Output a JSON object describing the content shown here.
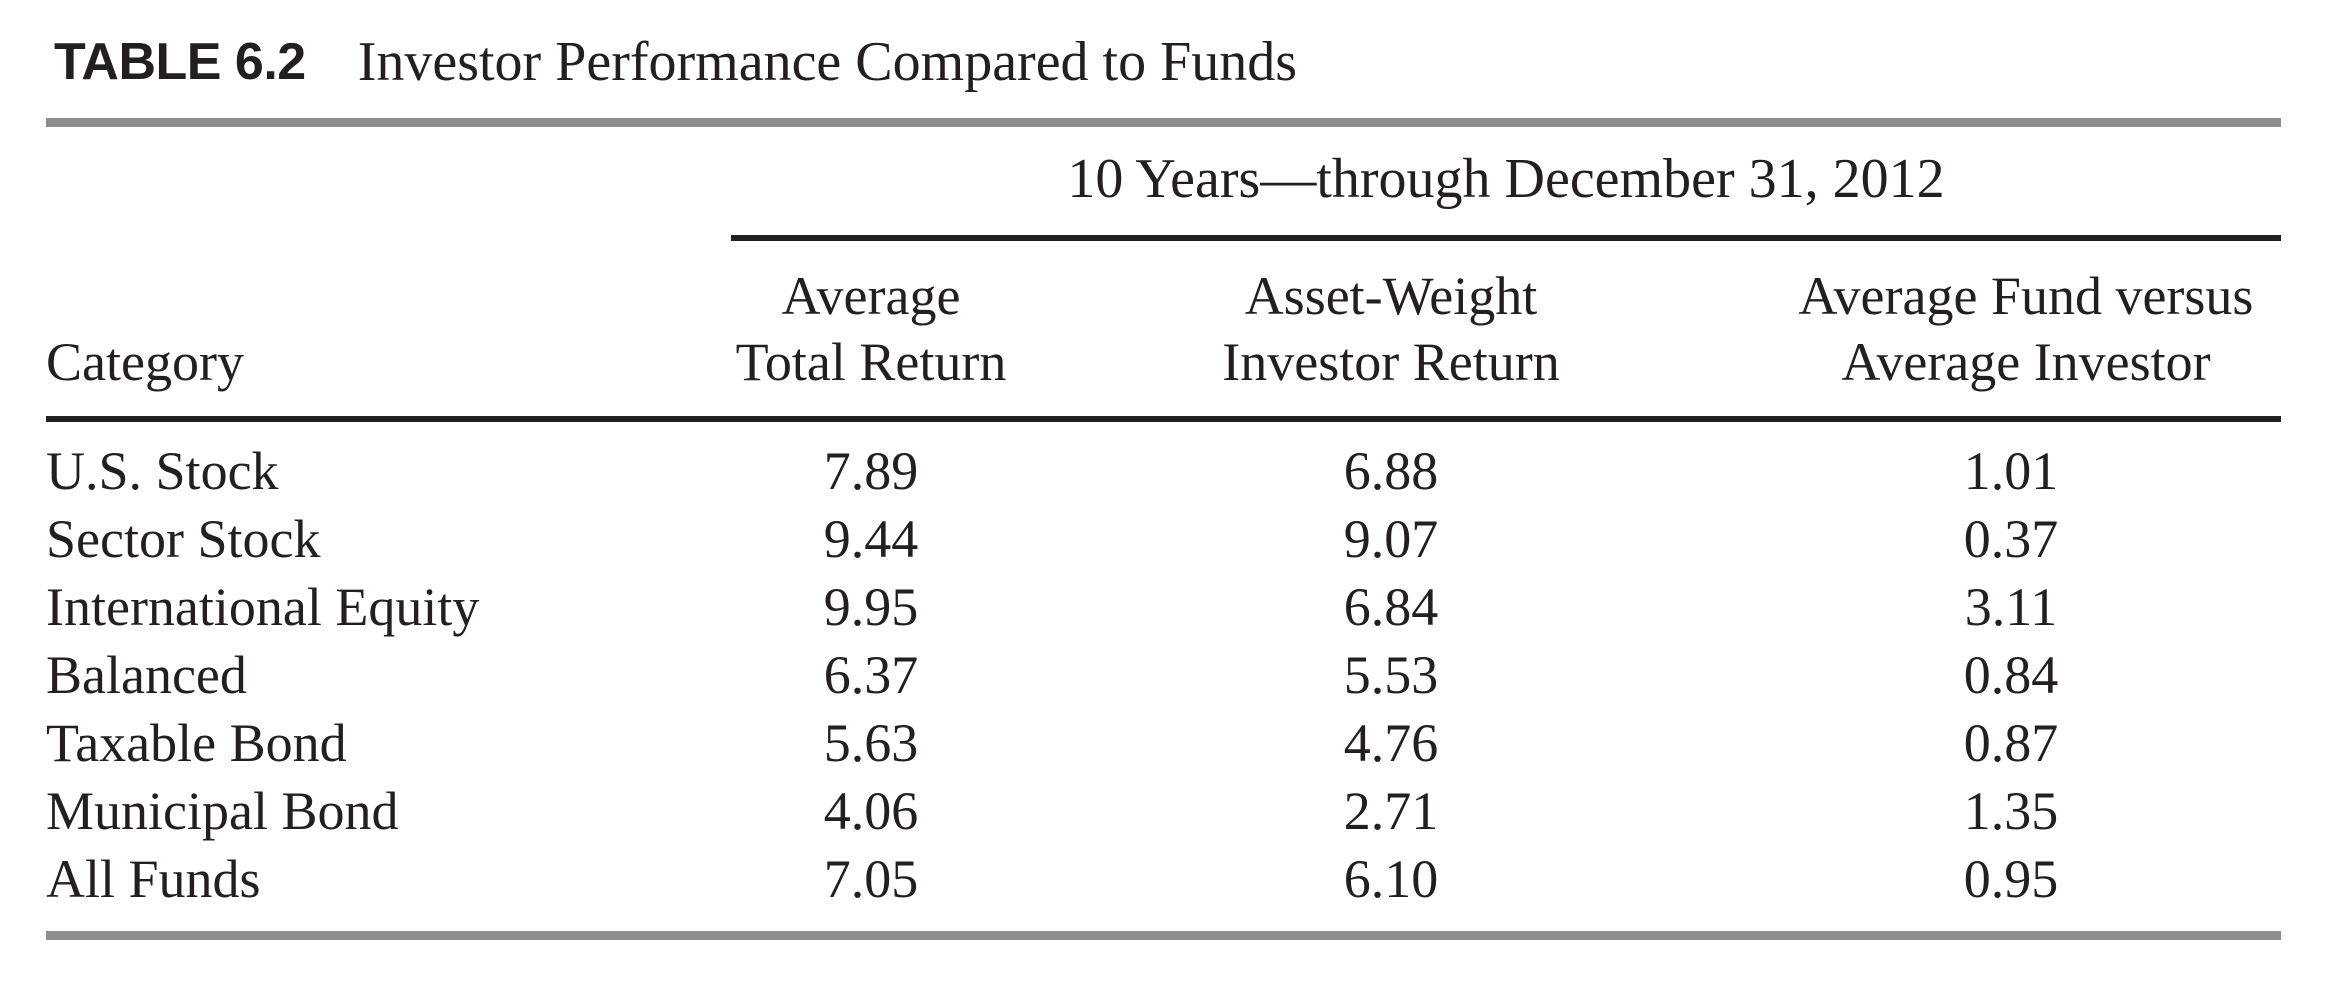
{
  "table": {
    "label": "TABLE 6.2",
    "caption": "Investor Performance Compared to Funds",
    "span_header": "10 Years—through December 31, 2012",
    "columns": [
      {
        "line1": "",
        "line2": "Category"
      },
      {
        "line1": "Average",
        "line2": "Total Return"
      },
      {
        "line1": "Asset-Weight",
        "line2": "Investor Return"
      },
      {
        "line1": "Average Fund versus",
        "line2": "Average Investor"
      }
    ],
    "rows": [
      {
        "category": "U.S. Stock",
        "values": [
          "7.89",
          "6.88",
          "1.01"
        ]
      },
      {
        "category": "Sector Stock",
        "values": [
          "9.44",
          "9.07",
          "0.37"
        ]
      },
      {
        "category": "International Equity",
        "values": [
          "9.95",
          "6.84",
          "3.11"
        ]
      },
      {
        "category": "Balanced",
        "values": [
          "6.37",
          "5.53",
          "0.84"
        ]
      },
      {
        "category": "Taxable Bond",
        "values": [
          "5.63",
          "4.76",
          "0.87"
        ]
      },
      {
        "category": "Municipal Bond",
        "values": [
          "4.06",
          "2.71",
          "1.35"
        ]
      },
      {
        "category": "All Funds",
        "values": [
          "7.05",
          "6.10",
          "0.95"
        ]
      }
    ],
    "colors": {
      "ink": "#231f20",
      "gray_rule": "#8b8d8f"
    }
  }
}
